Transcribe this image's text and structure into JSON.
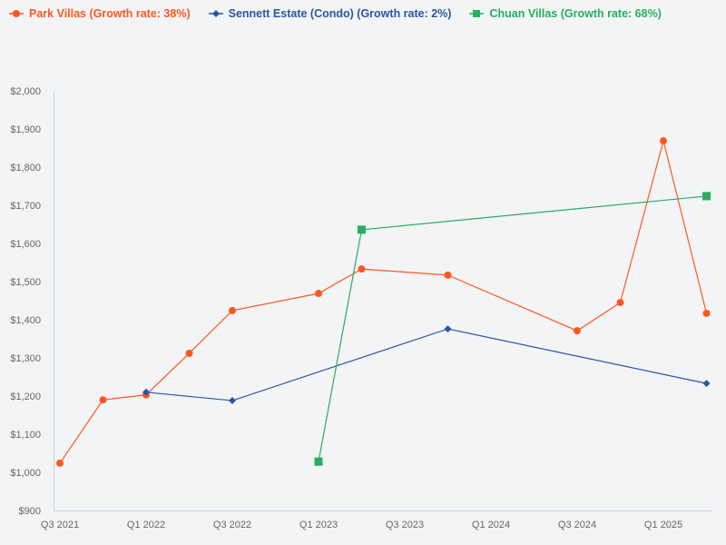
{
  "chart_data": {
    "type": "line",
    "title": "",
    "xlabel": "",
    "ylabel": "",
    "ylim": [
      900,
      2000
    ],
    "y_ticks": [
      "$900",
      "$1,000",
      "$1,100",
      "$1,200",
      "$1,300",
      "$1,400",
      "$1,500",
      "$1,600",
      "$1,700",
      "$1,800",
      "$1,900",
      "$2,000"
    ],
    "x_ticks": [
      "Q3 2021",
      "Q1 2022",
      "Q3 2022",
      "Q1 2023",
      "Q3 2023",
      "Q1 2024",
      "Q3 2024",
      "Q1 2025"
    ],
    "x_quarters": [
      "Q3 2021",
      "Q4 2021",
      "Q1 2022",
      "Q2 2022",
      "Q3 2022",
      "Q4 2022",
      "Q1 2023",
      "Q2 2023",
      "Q3 2023",
      "Q4 2023",
      "Q1 2024",
      "Q2 2024",
      "Q3 2024",
      "Q4 2024",
      "Q1 2025",
      "Q2 2025"
    ],
    "grid": false,
    "legend_position": "top-left",
    "series": [
      {
        "name": "Park Villas (Growth rate: 38%)",
        "color": "#ff5722",
        "marker": "circle",
        "points": [
          {
            "x": "Q3 2021",
            "y": 1024
          },
          {
            "x": "Q4 2021",
            "y": 1190
          },
          {
            "x": "Q1 2022",
            "y": 1203
          },
          {
            "x": "Q2 2022",
            "y": 1312
          },
          {
            "x": "Q3 2022",
            "y": 1424
          },
          {
            "x": "Q1 2023",
            "y": 1469
          },
          {
            "x": "Q2 2023",
            "y": 1533
          },
          {
            "x": "Q4 2023",
            "y": 1517
          },
          {
            "x": "Q3 2024",
            "y": 1371
          },
          {
            "x": "Q4 2024",
            "y": 1445
          },
          {
            "x": "Q1 2025",
            "y": 1869
          },
          {
            "x": "Q2 2025",
            "y": 1417
          }
        ]
      },
      {
        "name": "Sennett Estate (Condo) (Growth rate: 2%)",
        "color": "#2a56a3",
        "marker": "diamond",
        "points": [
          {
            "x": "Q1 2022",
            "y": 1210
          },
          {
            "x": "Q3 2022",
            "y": 1188
          },
          {
            "x": "Q4 2023",
            "y": 1376
          },
          {
            "x": "Q2 2025",
            "y": 1233
          }
        ]
      },
      {
        "name": "Chuan Villas (Growth rate: 68%)",
        "color": "#27ae60",
        "marker": "square",
        "points": [
          {
            "x": "Q1 2023",
            "y": 1028
          },
          {
            "x": "Q2 2023",
            "y": 1636
          },
          {
            "x": "Q2 2025",
            "y": 1724
          }
        ]
      }
    ]
  },
  "legend": [
    {
      "label": "Park Villas (Growth rate: 38%)",
      "color": "#ff5722",
      "icon": "circle-marker-icon"
    },
    {
      "label": "Sennett Estate (Condo) (Growth rate: 2%)",
      "color": "#2a56a3",
      "icon": "diamond-marker-icon"
    },
    {
      "label": "Chuan Villas (Growth rate: 68%)",
      "color": "#27ae60",
      "icon": "square-marker-icon"
    }
  ]
}
